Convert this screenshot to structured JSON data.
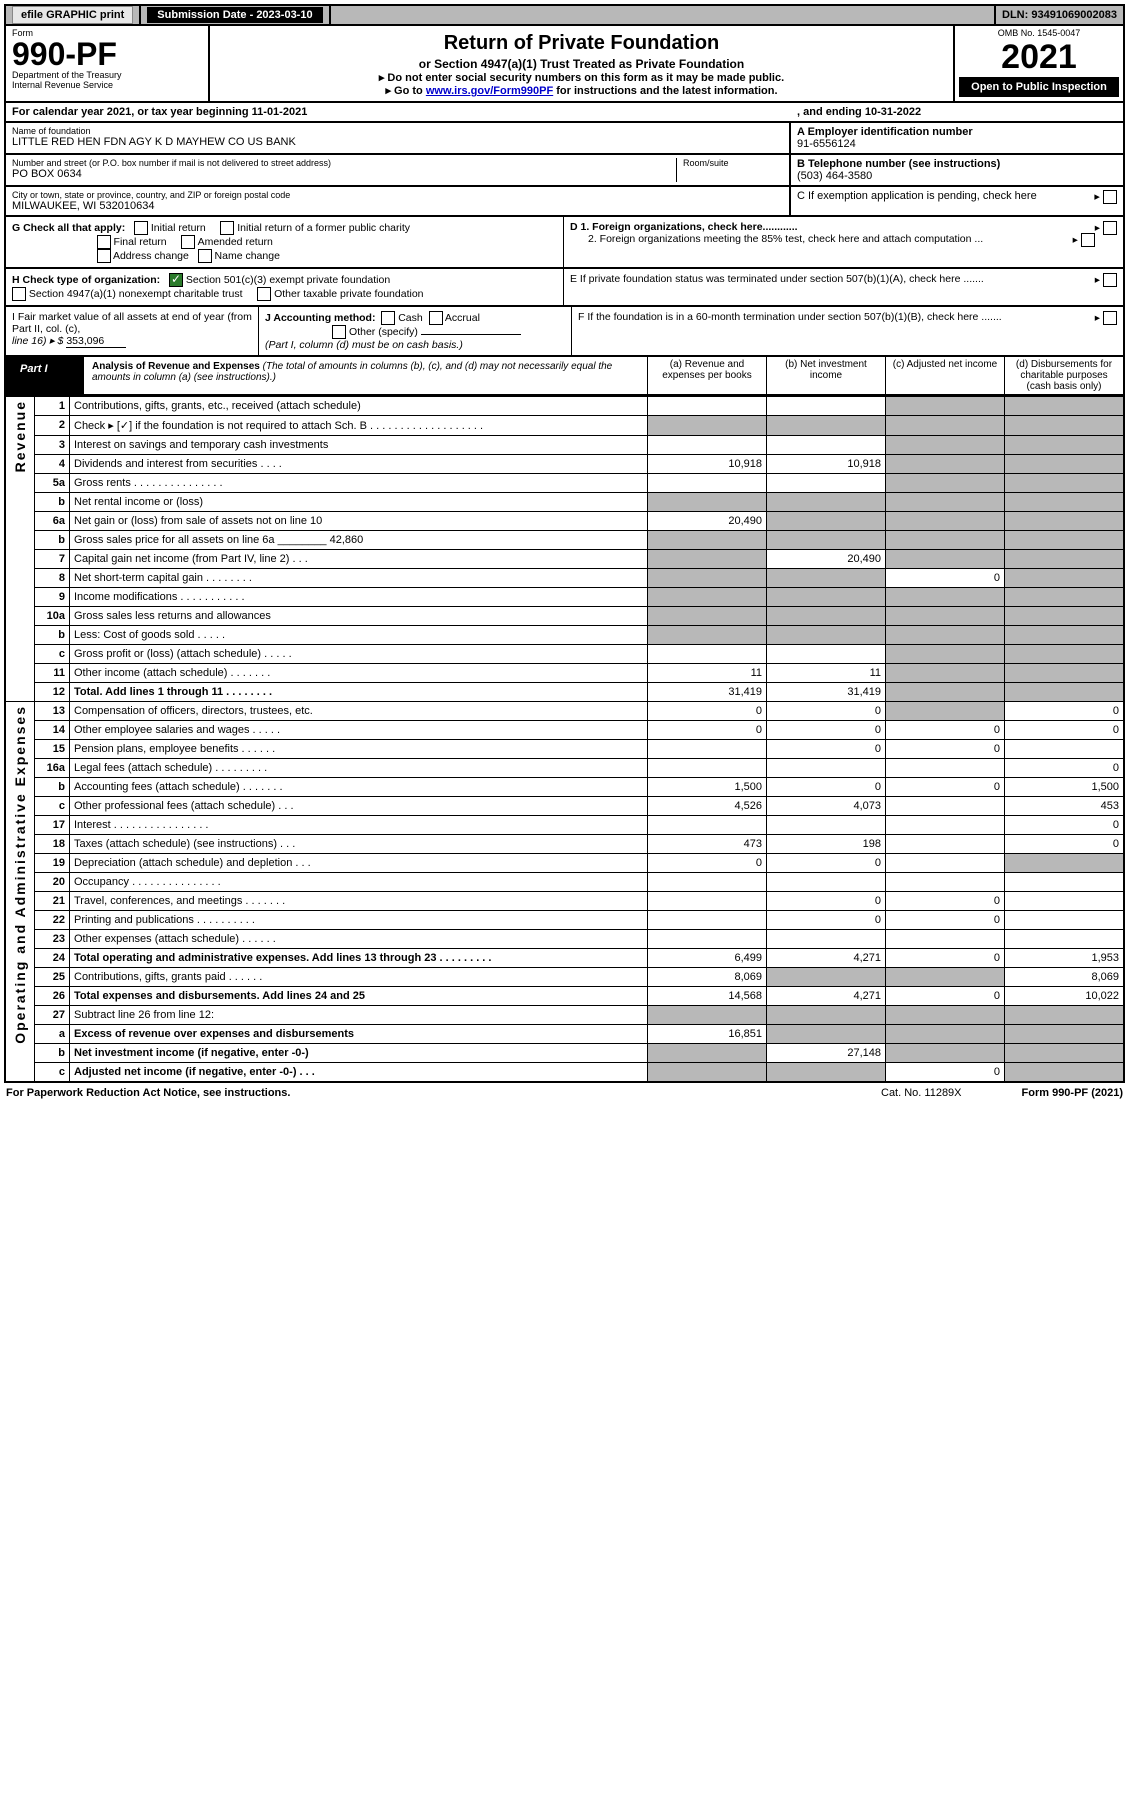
{
  "topbar": {
    "efile": "efile GRAPHIC print",
    "submission_label": "Submission Date - 2023-03-10",
    "dln": "DLN: 93491069002083"
  },
  "header": {
    "form_word": "Form",
    "form_no": "990-PF",
    "dept": "Department of the Treasury",
    "irs": "Internal Revenue Service",
    "title": "Return of Private Foundation",
    "subtitle": "or Section 4947(a)(1) Trust Treated as Private Foundation",
    "instr1": "▸ Do not enter social security numbers on this form as it may be made public.",
    "instr2_pre": "▸ Go to ",
    "instr2_link": "www.irs.gov/Form990PF",
    "instr2_post": " for instructions and the latest information.",
    "omb": "OMB No. 1545-0047",
    "year": "2021",
    "open": "Open to Public Inspection"
  },
  "cal": {
    "line": "For calendar year 2021, or tax year beginning 11-01-2021",
    "ending": ", and ending 10-31-2022"
  },
  "name": {
    "lbl": "Name of foundation",
    "val": "LITTLE RED HEN FDN AGY K D MAYHEW CO US BANK"
  },
  "ein": {
    "lbl": "A Employer identification number",
    "val": "91-6556124"
  },
  "addr": {
    "lbl": "Number and street (or P.O. box number if mail is not delivered to street address)",
    "room": "Room/suite",
    "val": "PO BOX 0634"
  },
  "phone": {
    "lbl": "B Telephone number (see instructions)",
    "val": "(503) 464-3580"
  },
  "city": {
    "lbl": "City or town, state or province, country, and ZIP or foreign postal code",
    "val": "MILWAUKEE, WI  532010634"
  },
  "boxC": "C If exemption application is pending, check here",
  "boxG": {
    "lbl": "G Check all that apply:",
    "o1": "Initial return",
    "o2": "Final return",
    "o3": "Address change",
    "o4": "Initial return of a former public charity",
    "o5": "Amended return",
    "o6": "Name change"
  },
  "boxD": {
    "d1": "D 1. Foreign organizations, check here............",
    "d2": "2. Foreign organizations meeting the 85% test, check here and attach computation ..."
  },
  "boxH": {
    "lbl": "H Check type of organization:",
    "o1": "Section 501(c)(3) exempt private foundation",
    "o2": "Section 4947(a)(1) nonexempt charitable trust",
    "o3": "Other taxable private foundation"
  },
  "boxE": "E  If private foundation status was terminated under section 507(b)(1)(A), check here .......",
  "boxI": {
    "l1": "I Fair market value of all assets at end of year (from Part II, col. (c),",
    "l2": "line 16) ▸ $",
    "val": "353,096"
  },
  "boxJ": {
    "lbl": "J Accounting method:",
    "o1": "Cash",
    "o2": "Accrual",
    "o3": "Other (specify)",
    "note": "(Part I, column (d) must be on cash basis.)"
  },
  "boxF": "F  If the foundation is in a 60-month termination under section 507(b)(1)(B), check here .......",
  "part1": {
    "tag": "Part I",
    "title": "Analysis of Revenue and Expenses",
    "note": "(The total of amounts in columns (b), (c), and (d) may not necessarily equal the amounts in column (a) (see instructions).)",
    "colA": "(a)  Revenue and expenses per books",
    "colB": "(b)  Net investment income",
    "colC": "(c)  Adjusted net income",
    "colD": "(d)  Disbursements for charitable purposes (cash basis only)"
  },
  "side": {
    "rev": "Revenue",
    "exp": "Operating and Administrative Expenses"
  },
  "rows": [
    {
      "n": "1",
      "d": "Contributions, gifts, grants, etc., received (attach schedule)"
    },
    {
      "n": "2",
      "d": "Check ▸ [✓] if the foundation is not required to attach Sch. B  . . . . . . . . . . . . . . . . . . ."
    },
    {
      "n": "3",
      "d": "Interest on savings and temporary cash investments"
    },
    {
      "n": "4",
      "d": "Dividends and interest from securities  . . . .",
      "a": "10,918",
      "b": "10,918"
    },
    {
      "n": "5a",
      "d": "Gross rents . . . . . . . . . . . . . . ."
    },
    {
      "n": "b",
      "d": "Net rental income or (loss)"
    },
    {
      "n": "6a",
      "d": "Net gain or (loss) from sale of assets not on line 10",
      "a": "20,490"
    },
    {
      "n": "b",
      "d": "Gross sales price for all assets on line 6a ________ 42,860"
    },
    {
      "n": "7",
      "d": "Capital gain net income (from Part IV, line 2)  . . .",
      "b": "20,490"
    },
    {
      "n": "8",
      "d": "Net short-term capital gain  . . . . . . . .",
      "c": "0"
    },
    {
      "n": "9",
      "d": "Income modifications . . . . . . . . . . ."
    },
    {
      "n": "10a",
      "d": "Gross sales less returns and allowances"
    },
    {
      "n": "b",
      "d": "Less: Cost of goods sold  . . . . ."
    },
    {
      "n": "c",
      "d": "Gross profit or (loss) (attach schedule)  . . . . ."
    },
    {
      "n": "11",
      "d": "Other income (attach schedule)  . . . . . . .",
      "a": "11",
      "b": "11"
    },
    {
      "n": "12",
      "d": "Total. Add lines 1 through 11  . . . . . . . .",
      "a": "31,419",
      "b": "31,419",
      "bold": true
    },
    {
      "n": "13",
      "d": "Compensation of officers, directors, trustees, etc.",
      "a": "0",
      "b": "0",
      "dd": "0"
    },
    {
      "n": "14",
      "d": "Other employee salaries and wages  . . . . .",
      "a": "0",
      "b": "0",
      "c": "0",
      "dd": "0"
    },
    {
      "n": "15",
      "d": "Pension plans, employee benefits  . . . . . .",
      "b": "0",
      "c": "0"
    },
    {
      "n": "16a",
      "d": "Legal fees (attach schedule) . . . . . . . . .",
      "dd": "0"
    },
    {
      "n": "b",
      "d": "Accounting fees (attach schedule) . . . . . . .",
      "a": "1,500",
      "b": "0",
      "c": "0",
      "dd": "1,500"
    },
    {
      "n": "c",
      "d": "Other professional fees (attach schedule)  . . .",
      "a": "4,526",
      "b": "4,073",
      "dd": "453"
    },
    {
      "n": "17",
      "d": "Interest . . . . . . . . . . . . . . . .",
      "dd": "0"
    },
    {
      "n": "18",
      "d": "Taxes (attach schedule) (see instructions)  . . .",
      "a": "473",
      "b": "198",
      "dd": "0"
    },
    {
      "n": "19",
      "d": "Depreciation (attach schedule) and depletion  . . .",
      "a": "0",
      "b": "0"
    },
    {
      "n": "20",
      "d": "Occupancy . . . . . . . . . . . . . . ."
    },
    {
      "n": "21",
      "d": "Travel, conferences, and meetings . . . . . . .",
      "b": "0",
      "c": "0"
    },
    {
      "n": "22",
      "d": "Printing and publications . . . . . . . . . .",
      "b": "0",
      "c": "0"
    },
    {
      "n": "23",
      "d": "Other expenses (attach schedule)  . . . . . ."
    },
    {
      "n": "24",
      "d": "Total operating and administrative expenses. Add lines 13 through 23  . . . . . . . . .",
      "a": "6,499",
      "b": "4,271",
      "c": "0",
      "dd": "1,953",
      "bold": true
    },
    {
      "n": "25",
      "d": "Contributions, gifts, grants paid  . . . . . .",
      "a": "8,069",
      "dd": "8,069"
    },
    {
      "n": "26",
      "d": "Total expenses and disbursements. Add lines 24 and 25",
      "a": "14,568",
      "b": "4,271",
      "c": "0",
      "dd": "10,022",
      "bold": true
    },
    {
      "n": "27",
      "d": "Subtract line 26 from line 12:"
    },
    {
      "n": "a",
      "d": "Excess of revenue over expenses and disbursements",
      "a": "16,851",
      "bold": true
    },
    {
      "n": "b",
      "d": "Net investment income (if negative, enter -0-)",
      "b": "27,148",
      "bold": true
    },
    {
      "n": "c",
      "d": "Adjusted net income (if negative, enter -0-)  . . .",
      "c": "0",
      "bold": true
    }
  ],
  "grey_cells": {
    "1": [
      "c",
      "d"
    ],
    "2": [
      "a",
      "b",
      "c",
      "d"
    ],
    "3": [
      "c",
      "d"
    ],
    "4": [
      "c",
      "d"
    ],
    "5a": [
      "c",
      "d"
    ],
    "b": [
      "a",
      "b",
      "c",
      "d"
    ],
    "6a": [
      "b",
      "c",
      "d"
    ],
    "7": [
      "a",
      "c",
      "d"
    ],
    "8": [
      "a",
      "b",
      "d"
    ],
    "9": [
      "a",
      "b",
      "d"
    ],
    "10a": [
      "a",
      "b",
      "c",
      "d"
    ],
    "c": [
      "c",
      "d"
    ],
    "11": [
      "c",
      "d"
    ],
    "12": [
      "c",
      "d"
    ],
    "13": [
      "c"
    ],
    "19": [
      "d"
    ],
    "25": [
      "b",
      "c"
    ],
    "27": [
      "a",
      "b",
      "c",
      "d"
    ],
    "a_27": [
      "b",
      "c",
      "d"
    ],
    "b_27": [
      "a",
      "c",
      "d"
    ],
    "c_27": [
      "a",
      "b",
      "d"
    ]
  },
  "foot": {
    "left": "For Paperwork Reduction Act Notice, see instructions.",
    "mid": "Cat. No. 11289X",
    "right": "Form 990-PF (2021)"
  }
}
